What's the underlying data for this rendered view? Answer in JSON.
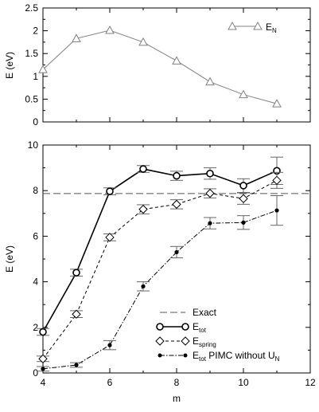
{
  "chart_data": [
    {
      "type": "line",
      "panel": "top",
      "xlim": [
        4,
        12
      ],
      "ylim": [
        0,
        2.5
      ],
      "ylabel": "E (eV)",
      "yticks": [
        "0",
        "0.5",
        "1",
        "1.5",
        "2",
        "2.5"
      ],
      "legend_position": "top-right",
      "series": [
        {
          "name": "E",
          "name_sub": "N",
          "marker": "triangle-open",
          "color": "#808080",
          "x": [
            4,
            5,
            6,
            7,
            8,
            9,
            10,
            11
          ],
          "y": [
            1.15,
            1.83,
            2.01,
            1.75,
            1.34,
            0.88,
            0.6,
            0.4
          ]
        }
      ]
    },
    {
      "type": "line",
      "panel": "bottom",
      "xlim": [
        4,
        12
      ],
      "ylim": [
        0,
        10
      ],
      "xlabel": "m",
      "ylabel": "E (eV)",
      "xticks": [
        "4",
        "6",
        "8",
        "10",
        "12"
      ],
      "yticks": [
        "0",
        "2",
        "4",
        "6",
        "8",
        "10"
      ],
      "legend_position": "bottom-right",
      "reference": {
        "name": "Exact",
        "y": 7.87,
        "style": "long-dash",
        "color": "#555555"
      },
      "series": [
        {
          "name": "E",
          "name_sub": "tot",
          "marker": "circle-open",
          "line": "solid",
          "x": [
            4,
            5,
            6,
            7,
            8,
            9,
            10,
            11
          ],
          "y": [
            1.8,
            4.4,
            7.97,
            8.95,
            8.65,
            8.75,
            8.22,
            8.87
          ],
          "err": [
            0.15,
            0.15,
            0.15,
            0.15,
            0.2,
            0.25,
            0.3,
            0.6
          ]
        },
        {
          "name": "E",
          "name_sub": "spring",
          "marker": "diamond-open",
          "line": "dashed",
          "x": [
            4,
            5,
            6,
            7,
            8,
            9,
            10,
            11
          ],
          "y": [
            0.62,
            2.58,
            5.95,
            7.18,
            7.4,
            7.88,
            7.65,
            8.45
          ],
          "err": [
            0.12,
            0.15,
            0.15,
            0.2,
            0.2,
            0.2,
            0.25,
            0.35
          ]
        },
        {
          "name": "E",
          "name_sub": "tot",
          "name_tail": " PIMC without U",
          "name_tail_sub": "N",
          "marker": "dot-filled",
          "line": "dash-dot",
          "x": [
            4,
            5,
            6,
            7,
            8,
            9,
            10,
            11
          ],
          "y": [
            0.18,
            0.35,
            1.22,
            3.8,
            5.3,
            6.57,
            6.6,
            7.13
          ],
          "err": [
            0.1,
            0.1,
            0.2,
            0.2,
            0.25,
            0.25,
            0.3,
            0.65
          ]
        }
      ]
    }
  ]
}
